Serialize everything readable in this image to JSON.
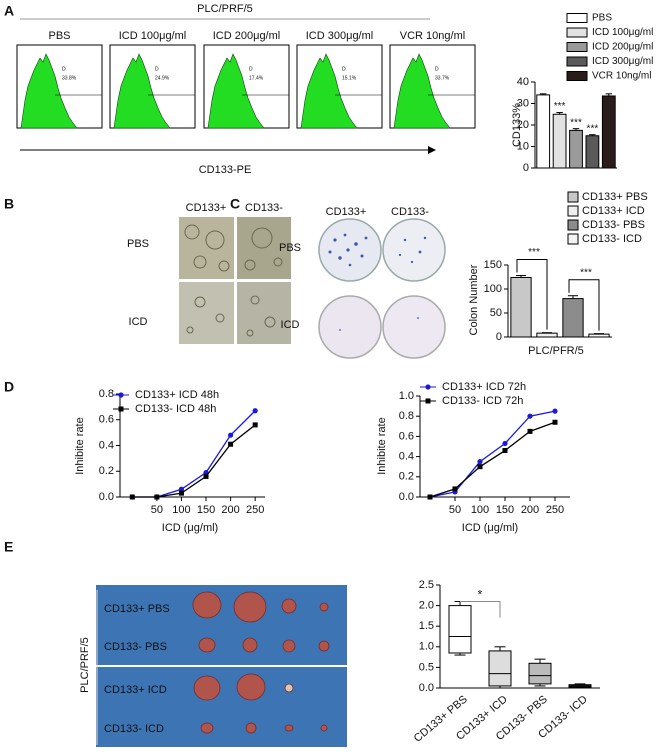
{
  "panels": {
    "A": {
      "label": "A",
      "title": "PLC/PRF/5",
      "axis_label": "CD133-PE",
      "samples": [
        {
          "name": "PBS",
          "gate": "D",
          "percent": "33.8%"
        },
        {
          "name": "ICD 100μg/ml",
          "gate": "D",
          "percent": "24.9%"
        },
        {
          "name": "ICD 200μg/ml",
          "gate": "D",
          "percent": "17.4%"
        },
        {
          "name": "ICD 300μg/ml",
          "gate": "D",
          "percent": "15.1%"
        },
        {
          "name": "VCR 10ng/ml",
          "gate": "D",
          "percent": "33.7%"
        }
      ]
    },
    "B": {
      "label": "B",
      "columns": [
        "CD133+",
        "CD133-"
      ],
      "rows": [
        "PBS",
        "ICD"
      ]
    },
    "C": {
      "label": "C",
      "columns": [
        "CD133+",
        "CD133-"
      ],
      "rows": [
        "PBS",
        "ICD"
      ]
    },
    "D": {
      "label": "D"
    },
    "E": {
      "label": "E",
      "group": "PLC/PRF/5",
      "rows": [
        "CD133+ PBS",
        "CD133- PBS",
        "CD133+ ICD",
        "CD133- ICD"
      ]
    }
  },
  "chart_data": [
    {
      "type": "bar",
      "ylabel": "CD133%",
      "categories": [
        "PBS",
        "ICD 100μg/ml",
        "ICD 200μg/ml",
        "ICD 300μg/ml",
        "VCR 10ng/ml"
      ],
      "values": [
        34,
        25,
        17.5,
        15,
        33.5
      ],
      "errors": [
        0.5,
        0.8,
        0.8,
        0.5,
        1
      ],
      "significance": [
        null,
        "***",
        "***",
        "***",
        null
      ],
      "colors": [
        "#ffffff",
        "#e2e2e2",
        "#9a9a9a",
        "#5a5a5a",
        "#2b1c1c"
      ],
      "ylim": [
        0,
        40
      ],
      "yticks": [
        0,
        10,
        20,
        30,
        40
      ]
    },
    {
      "type": "bar",
      "ylabel": "Colon Number",
      "xlabel": "PLC/PFR/5",
      "categories": [
        "CD133+ PBS",
        "CD133+ ICD",
        "CD133- PBS",
        "CD133- ICD"
      ],
      "values": [
        124,
        8,
        80,
        6
      ],
      "errors": [
        4,
        1,
        6,
        1
      ],
      "annotations": [
        "***",
        "***"
      ],
      "colors": [
        "#c8c8c8",
        "#eeeeee",
        "#8c8c8c",
        "#f4f4f4"
      ],
      "ylim": [
        0,
        150
      ],
      "yticks": [
        0,
        50,
        100,
        150
      ]
    },
    {
      "type": "line",
      "ylabel": "Inhibite rate",
      "xlabel": "ICD (μg/ml)",
      "x": [
        0,
        50,
        100,
        150,
        200,
        250
      ],
      "series": [
        {
          "name": "CD133+ ICD 48h",
          "color": "#1a1adb",
          "marker": "circle",
          "values": [
            0,
            0,
            0.06,
            0.19,
            0.48,
            0.67
          ]
        },
        {
          "name": "CD133- ICD 48h",
          "color": "#000000",
          "marker": "square",
          "values": [
            0,
            0,
            0.03,
            0.16,
            0.41,
            0.56
          ]
        }
      ],
      "xlim": [
        -25,
        270
      ],
      "xticks": [
        50,
        100,
        150,
        200,
        250
      ],
      "ylim": [
        0,
        0.8
      ],
      "yticks": [
        {
          "value": 0,
          "label": "0.0"
        },
        0.2,
        0.4,
        0.6,
        0.8
      ]
    },
    {
      "type": "line",
      "ylabel": "Inhibite rate",
      "xlabel": "ICD (μg/ml)",
      "x": [
        0,
        50,
        100,
        150,
        200,
        250
      ],
      "series": [
        {
          "name": "CD133+ ICD 72h",
          "color": "#1a1adb",
          "marker": "circle",
          "values": [
            0,
            0.05,
            0.35,
            0.53,
            0.8,
            0.85
          ]
        },
        {
          "name": "CD133- ICD 72h",
          "color": "#000000",
          "marker": "square",
          "values": [
            0,
            0.08,
            0.3,
            0.46,
            0.65,
            0.74
          ]
        }
      ],
      "xlim": [
        -20,
        280
      ],
      "xticks": [
        50,
        100,
        150,
        200,
        250
      ],
      "ylim": [
        0,
        1
      ],
      "yticks": [
        {
          "value": 0,
          "label": "0.0"
        },
        0.2,
        0.4,
        0.6,
        0.8,
        {
          "value": 1,
          "label": "1.0"
        }
      ]
    },
    {
      "type": "box",
      "categories": [
        "CD133+ PBS",
        "CD133+ ICD",
        "CD133- PBS",
        "CD133- ICD"
      ],
      "boxes": [
        {
          "min": 0.8,
          "q1": 0.85,
          "median": 1.25,
          "q3": 2.0,
          "max": 2.1
        },
        {
          "min": 0.0,
          "q1": 0.05,
          "median": 0.35,
          "q3": 0.9,
          "max": 1.0
        },
        {
          "min": 0.05,
          "q1": 0.1,
          "median": 0.3,
          "q3": 0.6,
          "max": 0.7
        },
        {
          "min": 0.0,
          "q1": 0.02,
          "median": 0.05,
          "q3": 0.08,
          "max": 0.1
        }
      ],
      "colors": [
        "#ffffff",
        "#dddddd",
        "#bbbbbb",
        "#333333"
      ],
      "annotations": [
        "*"
      ],
      "ylim": [
        0,
        2.5
      ],
      "yticks": [
        {
          "value": 0,
          "label": "0.0"
        },
        0.5,
        {
          "value": 1,
          "label": "1.0"
        },
        1.5,
        {
          "value": 2,
          "label": "2.0"
        },
        2.5
      ]
    }
  ]
}
